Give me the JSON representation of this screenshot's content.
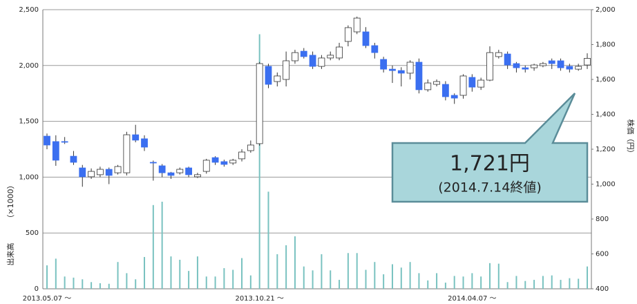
{
  "chart_data": {
    "type": "candlestick",
    "categories": [
      "2013.05.07 ～",
      null,
      null,
      null,
      null,
      null,
      null,
      null,
      null,
      null,
      null,
      null,
      null,
      null,
      null,
      null,
      null,
      null,
      null,
      null,
      null,
      null,
      null,
      null,
      "2013.10.21 ～",
      null,
      null,
      null,
      null,
      null,
      null,
      null,
      null,
      null,
      null,
      null,
      null,
      null,
      null,
      null,
      null,
      null,
      null,
      null,
      null,
      null,
      null,
      null,
      "2014.04.07 ～",
      null,
      null,
      null,
      null,
      null,
      null,
      null,
      null,
      null,
      null,
      null,
      null,
      null
    ],
    "open": [
      1275,
      1244,
      1244,
      1160,
      1093,
      1042,
      1054,
      1085,
      1065,
      1065,
      1283,
      1260,
      1125,
      1105,
      1065,
      1065,
      1093,
      1042,
      1073,
      1152,
      1129,
      1121,
      1145,
      1192,
      1232,
      1675,
      1588,
      1600,
      1707,
      1762,
      1739,
      1675,
      1723,
      1723,
      1818,
      1873,
      1873,
      1794,
      1715,
      1659,
      1651,
      1636,
      1699,
      1541,
      1572,
      1572,
      1509,
      1509,
      1612,
      1556,
      1596,
      1731,
      1746,
      1691,
      1667,
      1667,
      1679,
      1707,
      1707,
      1675,
      1659,
      1683
    ],
    "high": [
      1290,
      1280,
      1270,
      1190,
      1110,
      1090,
      1100,
      1095,
      1110,
      1300,
      1340,
      1280,
      1135,
      1115,
      1070,
      1095,
      1100,
      1065,
      1145,
      1160,
      1140,
      1145,
      1200,
      1250,
      1700,
      1690,
      1640,
      1760,
      1770,
      1780,
      1760,
      1740,
      1760,
      1810,
      1910,
      1960,
      1900,
      1810,
      1730,
      1680,
      1670,
      1710,
      1720,
      1600,
      1600,
      1590,
      1520,
      1630,
      1630,
      1610,
      1790,
      1770,
      1760,
      1700,
      1680,
      1690,
      1700,
      1720,
      1720,
      1690,
      1690,
      1750
    ],
    "low": [
      1200,
      1105,
      1230,
      1110,
      985,
      1030,
      1040,
      1000,
      1055,
      1050,
      1240,
      1190,
      1020,
      1040,
      1030,
      1055,
      1040,
      1035,
      1060,
      1110,
      1100,
      1110,
      1130,
      1180,
      1220,
      1550,
      1560,
      1560,
      1690,
      1720,
      1660,
      1660,
      1710,
      1710,
      1790,
      1860,
      1780,
      1720,
      1640,
      1580,
      1560,
      1600,
      1520,
      1530,
      1560,
      1480,
      1460,
      1490,
      1530,
      1540,
      1590,
      1720,
      1660,
      1640,
      1640,
      1650,
      1670,
      1660,
      1650,
      1640,
      1650,
      1660
    ],
    "close": [
      1224,
      1137,
      1240,
      1125,
      1042,
      1073,
      1085,
      1050,
      1101,
      1283,
      1252,
      1212,
      1121,
      1065,
      1050,
      1085,
      1054,
      1054,
      1137,
      1125,
      1113,
      1137,
      1184,
      1224,
      1691,
      1572,
      1620,
      1707,
      1754,
      1731,
      1675,
      1723,
      1739,
      1786,
      1897,
      1952,
      1794,
      1754,
      1659,
      1651,
      1636,
      1699,
      1541,
      1580,
      1588,
      1501,
      1493,
      1620,
      1556,
      1596,
      1754,
      1754,
      1683,
      1667,
      1659,
      1683,
      1691,
      1691,
      1667,
      1659,
      1675,
      1721
    ],
    "volume": [
      210,
      270,
      110,
      100,
      85,
      60,
      50,
      45,
      240,
      140,
      85,
      285,
      750,
      780,
      290,
      260,
      160,
      290,
      110,
      110,
      185,
      170,
      275,
      120,
      2280,
      870,
      310,
      390,
      470,
      200,
      165,
      310,
      165,
      80,
      320,
      320,
      170,
      240,
      130,
      220,
      190,
      240,
      140,
      75,
      140,
      55,
      115,
      110,
      140,
      110,
      230,
      225,
      60,
      115,
      70,
      80,
      115,
      120,
      80,
      95,
      90,
      200
    ],
    "up_color": "#ffffff",
    "down_color": "#3b6ff0",
    "volume_color": "#79c2c0",
    "ylabel": "出来高",
    "ylabel_unit": "（×1000）",
    "y2label": "株価（円）",
    "ylim": [
      0,
      2500
    ],
    "yticks": [
      0,
      500,
      {
        "value": 1000,
        "label": "1,000"
      },
      {
        "value": 1500,
        "label": "1,500"
      },
      {
        "value": 2000,
        "label": "2,000"
      },
      {
        "value": 2500,
        "label": "2,500"
      }
    ],
    "y2lim": [
      400,
      2000
    ],
    "y2ticks": [
      400,
      600,
      800,
      {
        "value": 1000,
        "label": "1,000"
      },
      {
        "value": 1200,
        "label": "1,200"
      },
      {
        "value": 1400,
        "label": "1,400"
      },
      {
        "value": 1600,
        "label": "1,600"
      },
      {
        "value": 1800,
        "label": "1,800"
      },
      {
        "value": 2000,
        "label": "2,000"
      }
    ],
    "grid": true,
    "annotation": {
      "text": "1,721円",
      "subtext": "(2014.7.14終値)"
    }
  }
}
